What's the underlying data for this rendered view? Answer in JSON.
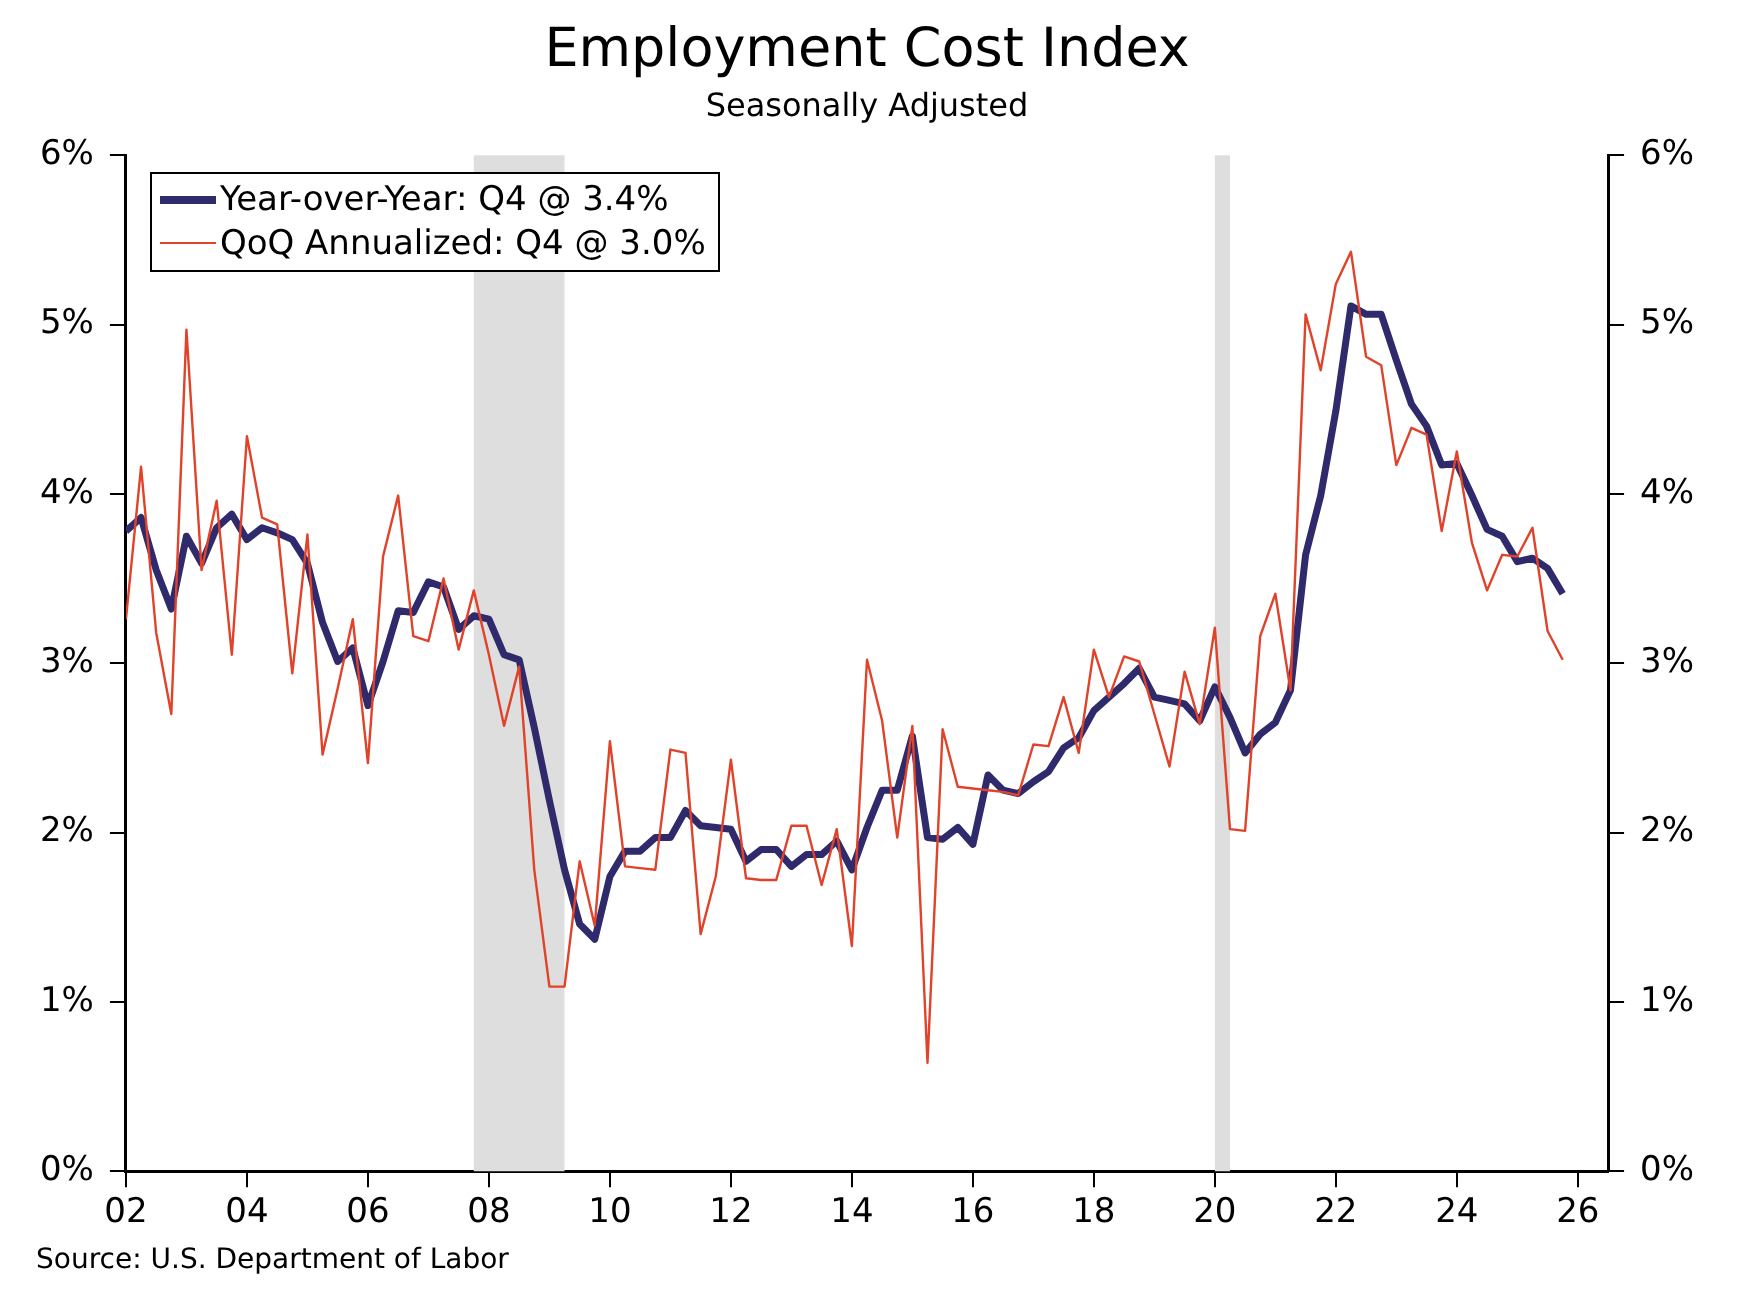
{
  "chart_data": {
    "type": "line",
    "title": "Employment Cost Index",
    "subtitle": "Seasonally Adjusted",
    "x": [
      2002,
      2002.25,
      2002.5,
      2002.75,
      2003,
      2003.25,
      2003.5,
      2003.75,
      2004,
      2004.25,
      2004.5,
      2004.75,
      2005,
      2005.25,
      2005.5,
      2005.75,
      2006,
      2006.25,
      2006.5,
      2006.75,
      2007,
      2007.25,
      2007.5,
      2007.75,
      2008,
      2008.25,
      2008.5,
      2008.75,
      2009,
      2009.25,
      2009.5,
      2009.75,
      2010,
      2010.25,
      2010.5,
      2010.75,
      2011,
      2011.25,
      2011.5,
      2011.75,
      2012,
      2012.25,
      2012.5,
      2012.75,
      2013,
      2013.25,
      2013.5,
      2013.75,
      2014,
      2014.25,
      2014.5,
      2014.75,
      2015,
      2015.25,
      2015.5,
      2015.75,
      2016,
      2016.25,
      2016.5,
      2016.75,
      2017,
      2017.25,
      2017.5,
      2017.75,
      2018,
      2018.25,
      2018.5,
      2018.75,
      2019,
      2019.25,
      2019.5,
      2019.75,
      2020,
      2020.25,
      2020.5,
      2020.75,
      2021,
      2021.25,
      2021.5,
      2021.75,
      2022,
      2022.25,
      2022.5,
      2022.75,
      2023,
      2023.25,
      2023.5,
      2023.75,
      2024,
      2024.25,
      2024.5,
      2024.75,
      2025,
      2025.25,
      2025.5,
      2025.75
    ],
    "series": [
      {
        "name": "QoQ Annualized: Q4 @ 3.0%",
        "color": "#e0422a",
        "values": [
          3.26,
          4.16,
          3.18,
          2.7,
          4.97,
          3.55,
          3.96,
          3.05,
          4.34,
          3.86,
          3.82,
          2.94,
          3.76,
          2.46,
          2.85,
          3.26,
          2.41,
          3.63,
          3.99,
          3.16,
          3.13,
          3.5,
          3.08,
          3.43,
          3.05,
          2.63,
          2.98,
          1.78,
          1.09,
          1.09,
          1.83,
          1.45,
          2.54,
          1.8,
          1.79,
          1.78,
          2.49,
          2.47,
          1.4,
          1.74,
          2.43,
          1.73,
          1.72,
          1.72,
          2.04,
          2.04,
          1.69,
          2.02,
          1.33,
          3.02,
          2.66,
          1.97,
          2.63,
          0.64,
          2.61,
          2.27,
          2.26,
          2.25,
          2.24,
          2.22,
          2.52,
          2.51,
          2.8,
          2.47,
          3.08,
          2.8,
          3.04,
          3.01,
          2.7,
          2.39,
          2.95,
          2.64,
          3.21,
          2.02,
          2.01,
          3.16,
          3.41,
          2.84,
          5.06,
          4.73,
          5.24,
          5.43,
          4.81,
          4.76,
          4.17,
          4.39,
          4.35,
          3.78,
          4.25,
          3.71,
          3.43,
          3.64,
          3.63,
          3.8,
          3.19,
          3.02
        ]
      },
      {
        "name": "Year-over-Year: Q4 @ 3.4%",
        "color": "#2e2a6b",
        "values": [
          3.78,
          3.86,
          3.55,
          3.32,
          3.75,
          3.59,
          3.8,
          3.88,
          3.73,
          3.8,
          3.77,
          3.73,
          3.59,
          3.24,
          3.01,
          3.09,
          2.75,
          3.01,
          3.31,
          3.3,
          3.48,
          3.45,
          3.2,
          3.28,
          3.26,
          3.05,
          3.02,
          2.62,
          2.19,
          1.78,
          1.46,
          1.37,
          1.74,
          1.89,
          1.89,
          1.97,
          1.97,
          2.13,
          2.04,
          2.03,
          2.02,
          1.83,
          1.9,
          1.9,
          1.8,
          1.87,
          1.87,
          1.95,
          1.78,
          2.03,
          2.25,
          2.25,
          2.57,
          1.97,
          1.96,
          2.03,
          1.93,
          2.34,
          2.25,
          2.23,
          2.3,
          2.36,
          2.5,
          2.56,
          2.72,
          2.8,
          2.88,
          2.97,
          2.8,
          2.78,
          2.76,
          2.66,
          2.86,
          2.68,
          2.47,
          2.58,
          2.65,
          2.84,
          3.64,
          3.99,
          4.49,
          5.11,
          5.06,
          5.06,
          4.79,
          4.53,
          4.4,
          4.17,
          4.18,
          3.99,
          3.79,
          3.75,
          3.6,
          3.62,
          3.56,
          3.41
        ]
      }
    ],
    "xlim": [
      2002,
      2026.5
    ],
    "xticks": [
      {
        "value": 2002,
        "label": "02"
      },
      {
        "value": 2004,
        "label": "04"
      },
      {
        "value": 2006,
        "label": "06"
      },
      {
        "value": 2008,
        "label": "08"
      },
      {
        "value": 2010,
        "label": "10"
      },
      {
        "value": 2012,
        "label": "12"
      },
      {
        "value": 2014,
        "label": "14"
      },
      {
        "value": 2016,
        "label": "16"
      },
      {
        "value": 2018,
        "label": "18"
      },
      {
        "value": 2020,
        "label": "20"
      },
      {
        "value": 2022,
        "label": "22"
      },
      {
        "value": 2024,
        "label": "24"
      },
      {
        "value": 2026,
        "label": "26"
      }
    ],
    "ylim": [
      0,
      6
    ],
    "yticks": [
      {
        "value": 0,
        "label": "0%"
      },
      {
        "value": 1,
        "label": "1%"
      },
      {
        "value": 2,
        "label": "2%"
      },
      {
        "value": 3,
        "label": "3%"
      },
      {
        "value": 4,
        "label": "4%"
      },
      {
        "value": 5,
        "label": "5%"
      },
      {
        "value": 6,
        "label": "6%"
      }
    ],
    "y2lim": [
      0,
      6
    ],
    "y2ticks": [
      {
        "value": 0,
        "label": "0%"
      },
      {
        "value": 1,
        "label": "1%"
      },
      {
        "value": 2,
        "label": "2%"
      },
      {
        "value": 3,
        "label": "3%"
      },
      {
        "value": 4,
        "label": "4%"
      },
      {
        "value": 5,
        "label": "5%"
      },
      {
        "value": 6,
        "label": "6%"
      }
    ],
    "bands": [
      {
        "axis": "x",
        "from": 2007.75,
        "to": 2009.25,
        "color": "#dedede"
      },
      {
        "axis": "x",
        "from": 2020,
        "to": 2020.25,
        "color": "#dedede"
      }
    ],
    "annotations": [
      "Source: U.S. Department of Labor"
    ],
    "legend": "top left",
    "grid": false,
    "marker": "none",
    "line_style": "solid"
  }
}
